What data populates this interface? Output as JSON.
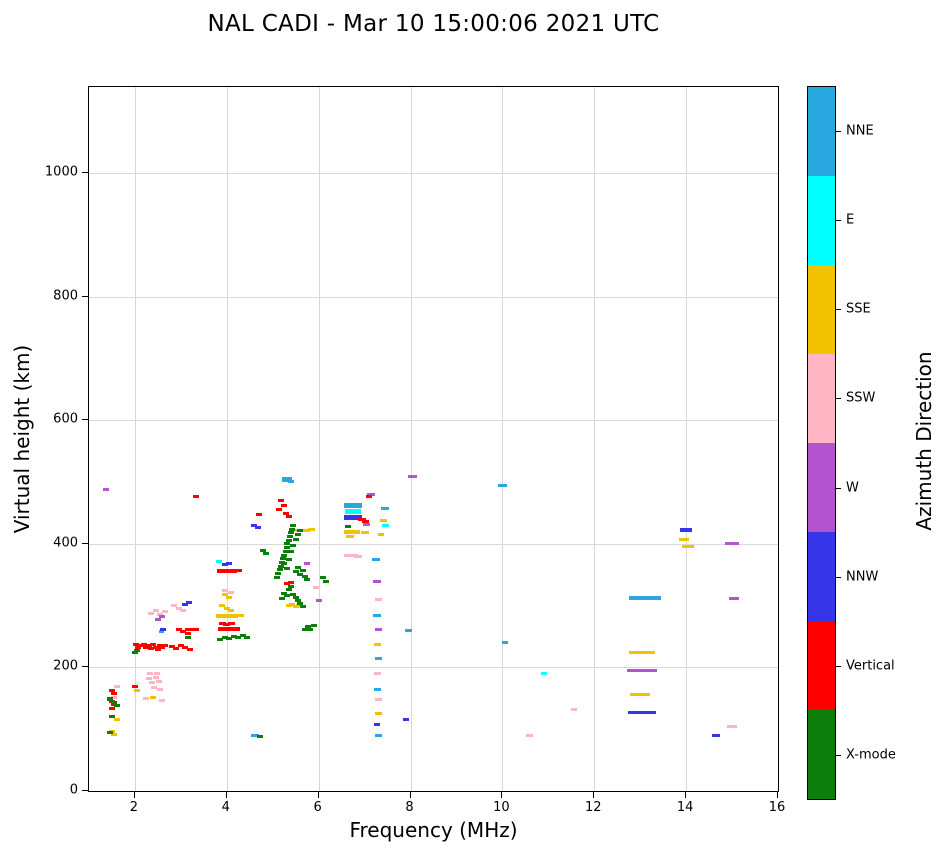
{
  "chart_data": {
    "type": "scatter",
    "title": "NAL CADI - Mar 10 15:00:06 2021 UTC",
    "xlabel": "Frequency (MHz)",
    "ylabel": "Virtual height (km)",
    "colorbar_label": "Azimuth Direction",
    "xlim": [
      1,
      16
    ],
    "ylim": [
      0,
      1140
    ],
    "xticks": [
      2,
      4,
      6,
      8,
      10,
      12,
      14,
      16
    ],
    "yticks": [
      0,
      200,
      400,
      600,
      800,
      1000
    ],
    "grid": true,
    "legend_position": "right-colorbar",
    "legend": [
      {
        "label": "NNE",
        "color": "#29a8e0"
      },
      {
        "label": "E",
        "color": "#00ffff"
      },
      {
        "label": "SSE",
        "color": "#f2c200"
      },
      {
        "label": "SSW",
        "color": "#ffb6c4"
      },
      {
        "label": "W",
        "color": "#b554cf"
      },
      {
        "label": "NNW",
        "color": "#3636e8"
      },
      {
        "label": "Vertical",
        "color": "#fe0000"
      },
      {
        "label": "X-mode",
        "color": "#0b7e0b"
      }
    ],
    "series": [
      {
        "name": "NNE",
        "points": [
          [
            4.62,
            90,
            8
          ],
          [
            5.3,
            505,
            10,
            5
          ],
          [
            5.4,
            501,
            6
          ],
          [
            6.75,
            462,
            18,
            5
          ],
          [
            7.25,
            375,
            8
          ],
          [
            7.28,
            285,
            8
          ],
          [
            7.3,
            215,
            7
          ],
          [
            7.28,
            165,
            7
          ],
          [
            7.3,
            90,
            7
          ],
          [
            7.45,
            458,
            8
          ],
          [
            7.95,
            260,
            7
          ],
          [
            10.0,
            495,
            9
          ],
          [
            10.05,
            240,
            6
          ],
          [
            13.1,
            312,
            32,
            4
          ],
          [
            2.58,
            258,
            5
          ]
        ]
      },
      {
        "name": "E",
        "points": [
          [
            6.75,
            452,
            16,
            5
          ],
          [
            7.45,
            430,
            7
          ],
          [
            10.9,
            190,
            6
          ],
          [
            3.82,
            372,
            6
          ]
        ]
      },
      {
        "name": "SSE",
        "points": [
          [
            1.5,
            97
          ],
          [
            1.55,
            92
          ],
          [
            1.6,
            115
          ],
          [
            2.05,
            162
          ],
          [
            2.4,
            152
          ],
          [
            3.95,
            318
          ],
          [
            4.05,
            314
          ],
          [
            3.9,
            300
          ],
          [
            4.0,
            296
          ],
          [
            4.1,
            292
          ],
          [
            4.0,
            283,
            22,
            4
          ],
          [
            4.3,
            285,
            7
          ],
          [
            5.35,
            300
          ],
          [
            5.42,
            302
          ],
          [
            5.5,
            299
          ],
          [
            5.58,
            301
          ],
          [
            5.6,
            422,
            10
          ],
          [
            5.72,
            422,
            8
          ],
          [
            5.85,
            423,
            7
          ],
          [
            6.73,
            420,
            16,
            4
          ],
          [
            7.0,
            418,
            8
          ],
          [
            6.68,
            412,
            8
          ],
          [
            7.28,
            238,
            7
          ],
          [
            7.3,
            125,
            7
          ],
          [
            7.42,
            438,
            7
          ],
          [
            7.35,
            415,
            6
          ],
          [
            13.05,
            225,
            26
          ],
          [
            13.0,
            157,
            20
          ],
          [
            13.95,
            408,
            10
          ],
          [
            14.05,
            396,
            12
          ]
        ]
      },
      {
        "name": "SSW",
        "points": [
          [
            1.62,
            170
          ],
          [
            1.55,
            152
          ],
          [
            2.25,
            150
          ],
          [
            2.6,
            147
          ],
          [
            2.3,
            182
          ],
          [
            2.38,
            176
          ],
          [
            2.45,
            184
          ],
          [
            2.52,
            178
          ],
          [
            2.42,
            168
          ],
          [
            2.55,
            164
          ],
          [
            2.33,
            190
          ],
          [
            2.48,
            190
          ],
          [
            2.35,
            288
          ],
          [
            2.45,
            292
          ],
          [
            2.55,
            286
          ],
          [
            2.65,
            290
          ],
          [
            2.85,
            300
          ],
          [
            2.95,
            296
          ],
          [
            3.05,
            292
          ],
          [
            3.95,
            325
          ],
          [
            4.1,
            322
          ],
          [
            5.95,
            330
          ],
          [
            6.7,
            382,
            14
          ],
          [
            6.85,
            380,
            8
          ],
          [
            7.3,
            310,
            7
          ],
          [
            7.28,
            190,
            7
          ],
          [
            7.3,
            148,
            7
          ],
          [
            10.6,
            90,
            7
          ],
          [
            11.55,
            132,
            6
          ],
          [
            15.0,
            105,
            10
          ]
        ]
      },
      {
        "name": "W",
        "points": [
          [
            1.37,
            488
          ],
          [
            2.5,
            278
          ],
          [
            2.6,
            282
          ],
          [
            5.75,
            368
          ],
          [
            6.0,
            308
          ],
          [
            7.05,
            432,
            7
          ],
          [
            7.15,
            480,
            8
          ],
          [
            7.28,
            340,
            8
          ],
          [
            7.3,
            262,
            7
          ],
          [
            8.05,
            510,
            9
          ],
          [
            13.05,
            195,
            30
          ],
          [
            15.0,
            400,
            14
          ],
          [
            15.05,
            312,
            10
          ]
        ]
      },
      {
        "name": "NNW",
        "points": [
          [
            2.62,
            262
          ],
          [
            3.1,
            302
          ],
          [
            3.18,
            306
          ],
          [
            3.95,
            366
          ],
          [
            4.05,
            369
          ],
          [
            4.6,
            430
          ],
          [
            4.68,
            426
          ],
          [
            6.75,
            443,
            18,
            5
          ],
          [
            7.28,
            108,
            6
          ],
          [
            7.9,
            115,
            6
          ],
          [
            13.05,
            127,
            28
          ],
          [
            14.0,
            422,
            12,
            4
          ],
          [
            14.65,
            90,
            8
          ]
        ]
      },
      {
        "name": "Vertical",
        "points": [
          [
            1.5,
            163
          ],
          [
            1.55,
            158
          ],
          [
            1.45,
            150
          ],
          [
            1.5,
            145
          ],
          [
            1.55,
            140
          ],
          [
            1.5,
            133
          ],
          [
            2.0,
            170
          ],
          [
            2.02,
            238
          ],
          [
            2.06,
            233
          ],
          [
            2.1,
            236
          ],
          [
            2.2,
            238
          ],
          [
            2.25,
            232
          ],
          [
            2.3,
            236
          ],
          [
            2.35,
            230
          ],
          [
            2.4,
            237
          ],
          [
            2.45,
            232
          ],
          [
            2.5,
            229
          ],
          [
            2.55,
            235
          ],
          [
            2.6,
            232
          ],
          [
            2.65,
            236
          ],
          [
            2.8,
            234
          ],
          [
            2.9,
            230
          ],
          [
            3.0,
            236
          ],
          [
            3.1,
            232
          ],
          [
            3.2,
            229
          ],
          [
            2.95,
            262
          ],
          [
            3.05,
            258
          ],
          [
            3.15,
            255
          ],
          [
            3.25,
            262,
            14
          ],
          [
            3.32,
            477
          ],
          [
            4.0,
            357,
            20,
            4
          ],
          [
            4.25,
            357,
            8
          ],
          [
            3.9,
            272,
            7
          ],
          [
            4.0,
            270,
            7
          ],
          [
            4.1,
            272,
            7
          ],
          [
            4.05,
            262,
            22,
            4
          ],
          [
            4.7,
            447
          ],
          [
            5.18,
            470
          ],
          [
            5.24,
            463
          ],
          [
            5.14,
            456
          ],
          [
            5.28,
            450
          ],
          [
            5.35,
            445
          ],
          [
            5.3,
            336
          ],
          [
            5.4,
            338
          ],
          [
            6.95,
            440,
            8
          ],
          [
            7.02,
            437,
            7
          ],
          [
            7.1,
            477,
            6
          ]
        ]
      },
      {
        "name": "X-mode",
        "points": [
          [
            1.45,
            148
          ],
          [
            1.55,
            143
          ],
          [
            1.6,
            138
          ],
          [
            1.5,
            120
          ],
          [
            1.45,
            95
          ],
          [
            2.05,
            228
          ],
          [
            2.0,
            224
          ],
          [
            3.15,
            248
          ],
          [
            3.85,
            246
          ],
          [
            3.95,
            249
          ],
          [
            4.05,
            247
          ],
          [
            4.15,
            250
          ],
          [
            4.25,
            248
          ],
          [
            4.35,
            251
          ],
          [
            4.45,
            248
          ],
          [
            4.78,
            390
          ],
          [
            4.85,
            385
          ],
          [
            4.72,
            88
          ],
          [
            5.1,
            345
          ],
          [
            5.12,
            352
          ],
          [
            5.15,
            358
          ],
          [
            5.18,
            364
          ],
          [
            5.2,
            370
          ],
          [
            5.22,
            376
          ],
          [
            5.25,
            382
          ],
          [
            5.28,
            388
          ],
          [
            5.3,
            394
          ],
          [
            5.32,
            400
          ],
          [
            5.35,
            406
          ],
          [
            5.38,
            412
          ],
          [
            5.4,
            418
          ],
          [
            5.42,
            424
          ],
          [
            5.45,
            430
          ],
          [
            5.25,
            368
          ],
          [
            5.3,
            360
          ],
          [
            5.35,
            375
          ],
          [
            5.4,
            388
          ],
          [
            5.45,
            398
          ],
          [
            5.5,
            408
          ],
          [
            5.55,
            416
          ],
          [
            5.6,
            422
          ],
          [
            5.5,
            355
          ],
          [
            5.55,
            362
          ],
          [
            5.6,
            350
          ],
          [
            5.65,
            357
          ],
          [
            5.7,
            347
          ],
          [
            5.75,
            342
          ],
          [
            5.2,
            312
          ],
          [
            5.25,
            320
          ],
          [
            5.3,
            316
          ],
          [
            5.35,
            326
          ],
          [
            5.4,
            331
          ],
          [
            5.45,
            319
          ],
          [
            5.5,
            313
          ],
          [
            5.55,
            308
          ],
          [
            5.6,
            303
          ],
          [
            5.65,
            298
          ],
          [
            5.7,
            262
          ],
          [
            5.76,
            266
          ],
          [
            5.82,
            262
          ],
          [
            5.9,
            268
          ],
          [
            6.1,
            345
          ],
          [
            6.16,
            340
          ],
          [
            6.63,
            428,
            6
          ]
        ]
      }
    ]
  }
}
